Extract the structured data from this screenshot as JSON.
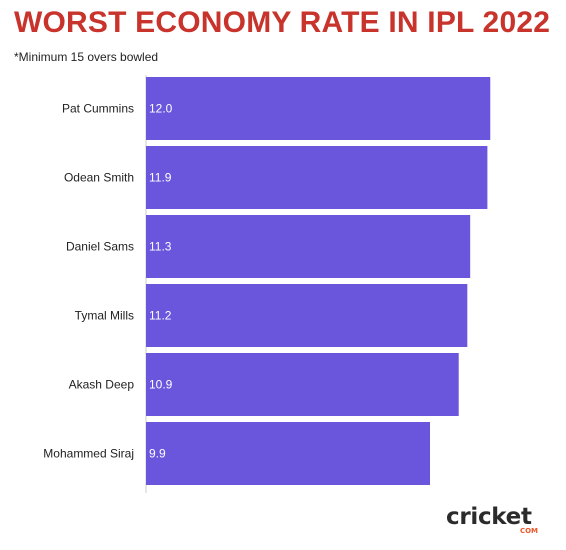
{
  "header": {
    "title": "WORST ECONOMY RATE IN IPL 2022",
    "subtitle": "*Minimum 15 overs bowled"
  },
  "logo": {
    "word": "cricket",
    "suffix": "COM"
  },
  "colors": {
    "bar": "#6a55dd",
    "title": "#c8332b",
    "axis": "#cccccc",
    "logo_accent": "#e8572a"
  },
  "chart_data": {
    "type": "bar",
    "orientation": "horizontal",
    "title": "WORST ECONOMY RATE IN IPL 2022",
    "subtitle": "*Minimum 15 overs bowled",
    "categories": [
      "Pat Cummins",
      "Odean Smith",
      "Daniel Sams",
      "Tymal Mills",
      "Akash Deep",
      "Mohammed Siraj"
    ],
    "values": [
      12.0,
      11.9,
      11.3,
      11.2,
      10.9,
      9.9
    ],
    "value_labels": [
      "12.0",
      "11.9",
      "11.3",
      "11.2",
      "10.9",
      "9.9"
    ],
    "xlim": [
      0,
      12.2
    ],
    "grid": false,
    "legend": "none"
  }
}
